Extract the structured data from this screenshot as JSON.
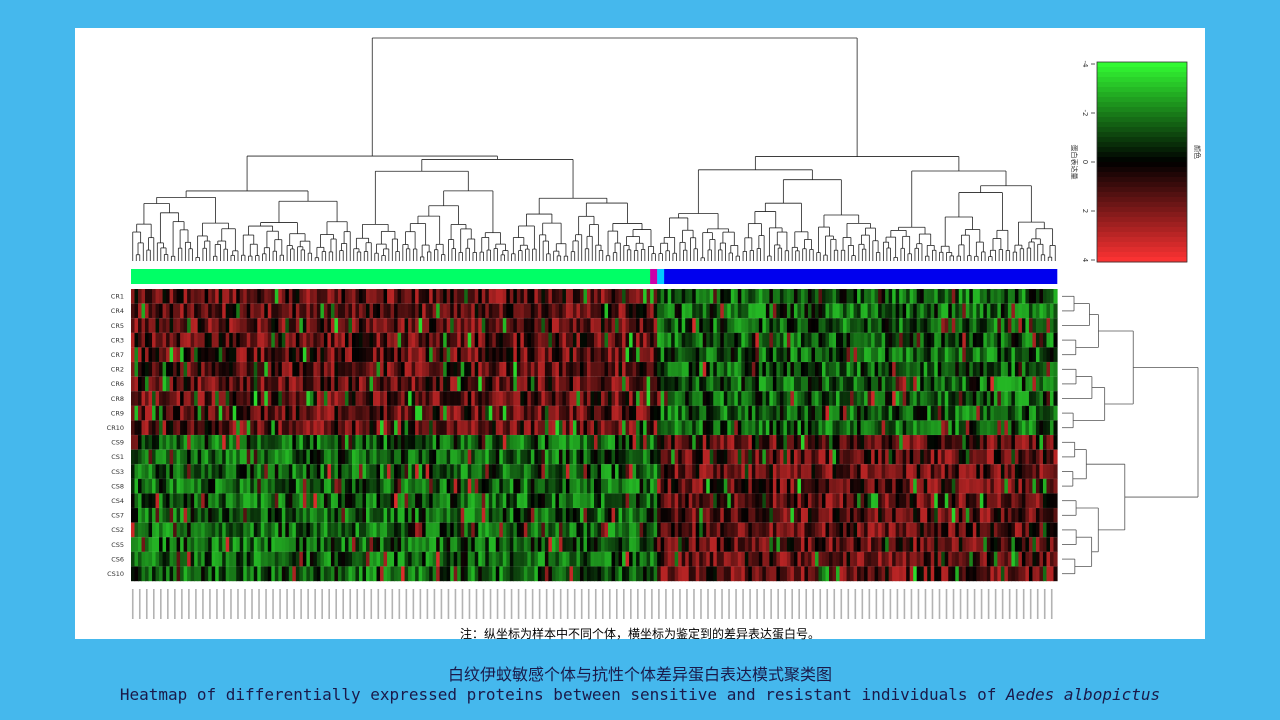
{
  "chart_data": {
    "type": "heatmap",
    "rows": [
      "CR1",
      "CR4",
      "CR5",
      "CR3",
      "CR7",
      "CR2",
      "CR6",
      "CR8",
      "CR9",
      "CR10",
      "CS9",
      "CS1",
      "CS3",
      "CS8",
      "CS4",
      "CS7",
      "CS2",
      "CS5",
      "CS6",
      "CS10"
    ],
    "column_groups": [
      {
        "color": "#00ff66",
        "count": 148
      },
      {
        "color": "#cc00aa",
        "count": 2
      },
      {
        "color": "#00ccff",
        "count": 2
      },
      {
        "color": "#0000ee",
        "count": 112
      }
    ],
    "row_group_pattern": {
      "CR": {
        "left_block": "up",
        "right_block": "down"
      },
      "CS": {
        "left_block": "down",
        "right_block": "up"
      }
    },
    "color_scale": {
      "min": -4,
      "max": 4,
      "low_color": "#33ff33",
      "mid_color": "#000000",
      "high_color": "#ff3333"
    },
    "colorbar_ticks": [
      "-4",
      "-2",
      "0",
      "2",
      "4"
    ],
    "colorbar_label": "蛋白表达量",
    "colorbar_title": "颜色",
    "column_labels_note": "protein accession numbers (unreadable at this resolution)"
  },
  "note": "注：纵坐标为样本中不同个体，横坐标为鉴定到的差异表达蛋白号。",
  "title_cn": "白纹伊蚊敏感个体与抗性个体差异蛋白表达模式聚类图",
  "title_en_plain": "Heatmap of differentially expressed proteins between sensitive and resistant individuals of ",
  "title_en_italic": "Aedes albopictus",
  "colors": {
    "background": "#45b8ed",
    "panel": "#ffffff"
  }
}
